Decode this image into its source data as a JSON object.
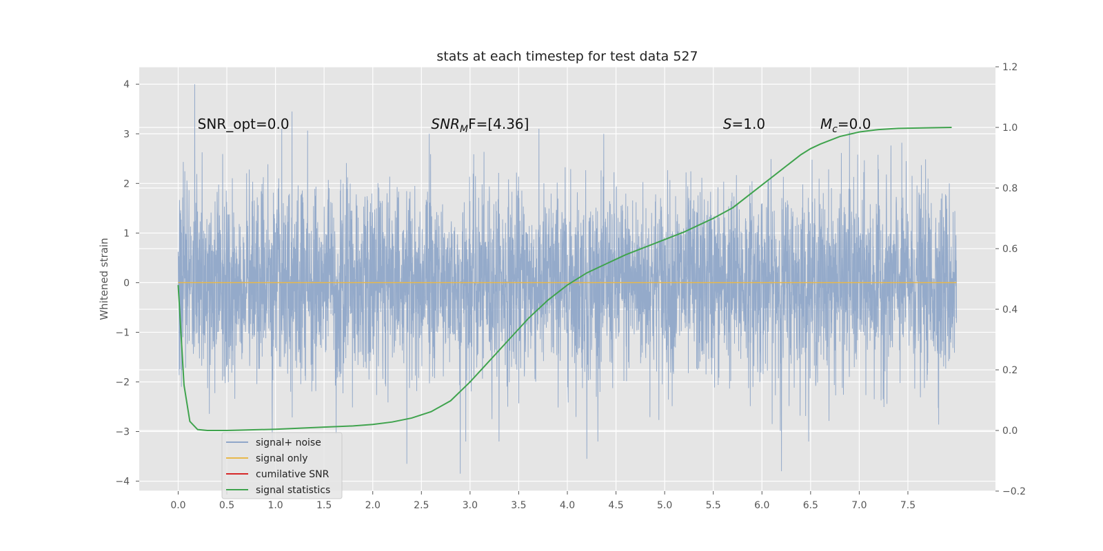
{
  "chart_data": {
    "type": "line",
    "title": "stats at each timestep for test data 527",
    "ylabel": "Whitened strain",
    "xlabel": "",
    "x_range": [
      -0.4,
      8.4
    ],
    "xlim_ticks": [
      "0.0",
      "0.5",
      "1.0",
      "1.5",
      "2.0",
      "2.5",
      "3.0",
      "3.5",
      "4.0",
      "4.5",
      "5.0",
      "5.5",
      "6.0",
      "6.5",
      "7.0",
      "7.5"
    ],
    "x_tick_values": [
      0.0,
      0.5,
      1.0,
      1.5,
      2.0,
      2.5,
      3.0,
      3.5,
      4.0,
      4.5,
      5.0,
      5.5,
      6.0,
      6.5,
      7.0,
      7.5
    ],
    "ylim_left": [
      -4.2,
      4.35
    ],
    "left_ticks": [
      -4,
      -3,
      -2,
      -1,
      0,
      1,
      2,
      3,
      4
    ],
    "left_tick_labels": [
      "−4",
      "−3",
      "−2",
      "−1",
      "0",
      "1",
      "2",
      "3",
      "4"
    ],
    "ylim_right": [
      -0.2,
      1.2
    ],
    "right_ticks": [
      -0.2,
      0.0,
      0.2,
      0.4,
      0.6,
      0.8,
      1.0,
      1.2
    ],
    "right_tick_labels": [
      "−0.2",
      "0.0",
      "0.2",
      "0.4",
      "0.6",
      "0.8",
      "1.0",
      "1.2"
    ],
    "grid": true,
    "legend_placement": "lower-left",
    "series": [
      {
        "name": "signal+ noise",
        "color": "#8fa6c8",
        "axis": "left",
        "x_start": 0.0,
        "x_end": 8.0,
        "n_points": 4096,
        "envelope": "random noise, approx. range -3.8 to 4.0",
        "peaks": [
          {
            "x": 0.17,
            "y": 4.0
          },
          {
            "x": 1.17,
            "y": 3.45
          },
          {
            "x": 2.58,
            "y": 3.0
          },
          {
            "x": 6.9,
            "y": 3.05
          },
          {
            "x": 2.35,
            "y": -3.65
          },
          {
            "x": 2.9,
            "y": -3.85
          },
          {
            "x": 4.2,
            "y": -3.55
          },
          {
            "x": 6.2,
            "y": -3.8
          }
        ]
      },
      {
        "name": "signal only",
        "color": "#e8b84a",
        "axis": "left",
        "x": [
          0.0,
          8.0
        ],
        "y": [
          0.0,
          0.0
        ]
      },
      {
        "name": "cumilative SNR",
        "color": "#d62728",
        "axis": "left",
        "x": [],
        "y": []
      },
      {
        "name": "signal statistics",
        "color": "#3fa34d",
        "axis": "right",
        "x": [
          0.0,
          0.06,
          0.12,
          0.2,
          0.3,
          0.5,
          1.0,
          1.5,
          1.8,
          2.0,
          2.2,
          2.4,
          2.6,
          2.8,
          3.0,
          3.2,
          3.4,
          3.6,
          3.8,
          4.0,
          4.2,
          4.4,
          4.6,
          4.8,
          5.0,
          5.2,
          5.5,
          5.7,
          6.0,
          6.2,
          6.4,
          6.5,
          6.6,
          6.8,
          7.0,
          7.2,
          7.4,
          7.6,
          7.95
        ],
        "y": [
          0.48,
          0.15,
          0.03,
          0.003,
          0.0,
          0.0,
          0.004,
          0.011,
          0.015,
          0.02,
          0.028,
          0.041,
          0.062,
          0.098,
          0.16,
          0.23,
          0.3,
          0.37,
          0.43,
          0.48,
          0.52,
          0.55,
          0.58,
          0.605,
          0.63,
          0.655,
          0.7,
          0.735,
          0.81,
          0.86,
          0.91,
          0.93,
          0.945,
          0.97,
          0.985,
          0.993,
          0.997,
          0.998,
          1.0
        ]
      }
    ],
    "annotations": [
      {
        "text": "SNR_opt=0.0",
        "x": 0.2,
        "y": 3.2
      },
      {
        "text_main": "SNR",
        "text_sub": "M",
        "text_rest": "F=[4.36]",
        "x": 2.6,
        "y": 3.2
      },
      {
        "text_main": "S",
        "text_rest": "=1.0",
        "x": 5.6,
        "y": 3.2
      },
      {
        "text_main": "M",
        "text_sub": "c",
        "text_rest": "=0.0",
        "x": 6.6,
        "y": 3.2
      }
    ]
  }
}
